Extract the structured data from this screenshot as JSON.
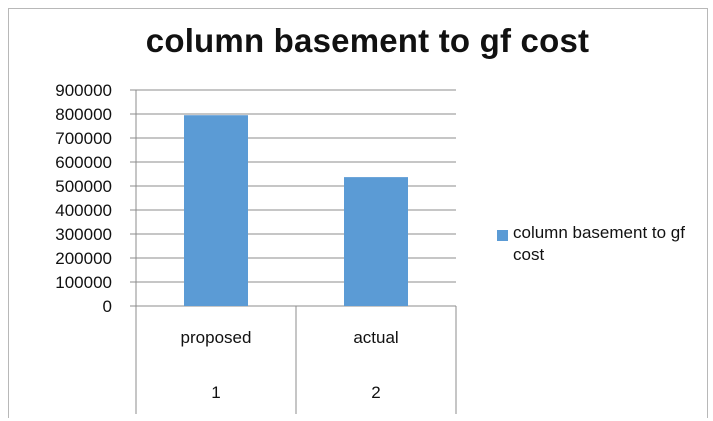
{
  "chart_data": {
    "type": "bar",
    "title": "column basement to gf cost",
    "categories": [
      {
        "label": "proposed",
        "index": "1"
      },
      {
        "label": "actual",
        "index": "2"
      }
    ],
    "series": [
      {
        "name": "column basement to gf cost",
        "values": [
          795000,
          537000
        ],
        "color": "#5b9bd5"
      }
    ],
    "ylim": [
      0,
      900000
    ],
    "yticks": [
      "0",
      "100000",
      "200000",
      "300000",
      "400000",
      "500000",
      "600000",
      "700000",
      "800000",
      "900000"
    ],
    "grid": true,
    "legend": "right"
  }
}
